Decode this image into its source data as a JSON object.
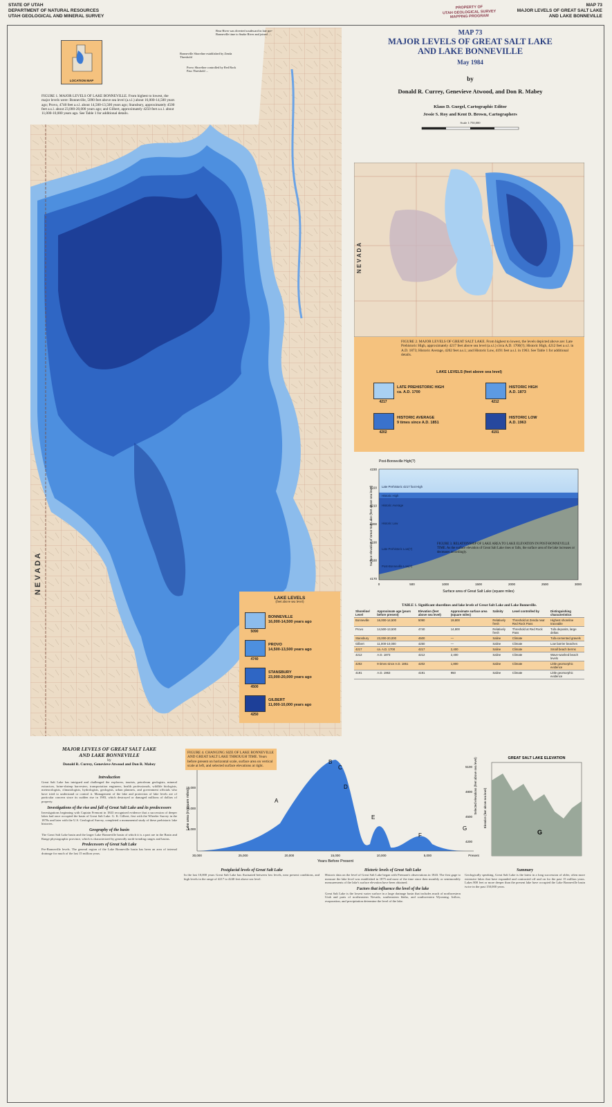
{
  "header": {
    "agency": [
      "STATE OF UTAH",
      "DEPARTMENT OF NATURAL RESOURCES",
      "UTAH GEOLOGICAL AND MINERAL SURVEY"
    ],
    "right": [
      "MAP 73",
      "MAJOR LEVELS OF GREAT SALT LAKE",
      "AND LAKE BONNEVILLE"
    ],
    "stamp": [
      "PROPERTY OF",
      "UTAH GEOLOGICAL SURVEY",
      "MAPPING PROGRAM"
    ]
  },
  "title_block": {
    "map_number": "MAP 73",
    "title": [
      "MAJOR LEVELS OF GREAT SALT LAKE",
      "AND LAKE BONNEVILLE"
    ],
    "date": "May 1984",
    "by": "by",
    "authors": "Donald R. Currey, Genevieve Atwood, and Don R. Mabey",
    "editor": "Klaus D. Gurgel, Cartographic Editor",
    "cartographers": "Jessie S. Roy and Kent D. Brown, Cartographers",
    "scale": "Scale 1:750,000"
  },
  "location_map": {
    "label": "LOCATION MAP"
  },
  "figure1": {
    "caption": "FIGURE 1. MAJOR LEVELS OF LAKE BONNEVILLE. From highest to lowest, the major levels were: Bonneville, 5090 feet above sea level (a.s.l.) about 16,000-14,500 years ago; Provo, 4740 feet a.s.l. about 14,500-13,500 years ago; Stansbury, approximately 4500 feet a.s.l. about 23,000-20,000 years ago; and Gilbert, approximately 4250 feet a.s.l. about 11,000-10,000 years ago. See Table 1 for additional details.",
    "notes": [
      "Bear River was diverted southward in late pre-Bonneville time to Snake River and joined ...",
      "Bonneville Shoreline established by Zenda Threshold",
      "Provo Shoreline controlled by Red Rock Pass Threshold ..."
    ],
    "state_label": "N E V A D A"
  },
  "legend1": {
    "title": "LAKE LEVELS",
    "subtitle": "(feet above sea level)",
    "items": [
      {
        "name": "BONNEVILLE",
        "age": "16,000-14,500 years ago",
        "elevation": "5090",
        "color": "#8cbcec"
      },
      {
        "name": "PROVO",
        "age": "14,500-13,500 years ago",
        "elevation": "4740",
        "color": "#4d8fdf"
      },
      {
        "name": "STANSBURY",
        "age": "23,000-20,000 years ago",
        "elevation": "4500",
        "color": "#2f66c4"
      },
      {
        "name": "GILBERT",
        "age": "11,000-10,000 years ago",
        "elevation": "4250",
        "color": "#1d3f98"
      }
    ]
  },
  "figure2": {
    "state_label": "N E V A D A",
    "caption": "FIGURE 2. MAJOR LEVELS OF GREAT SALT LAKE. From highest to lowest, the levels depicted above are: Late Prehistoric High, approximately 4217 feet above sea level (a.s.l.) circa A.D. 1700(?); Historic High, 4212 feet a.s.l. in A.D. 1873; Historic Average, 4202 feet a.s.l.; and Historic Low, 4191 feet a.s.l. in 1963. See Table 1 for additional details.",
    "legend_title": "LAKE LEVELS (feet above sea level)",
    "items": [
      {
        "name": "LATE PREHISTORIC HIGH",
        "date": "ca. A.D. 1700",
        "elevation": "4217",
        "color": "#a9d0f2"
      },
      {
        "name": "HISTORIC HIGH",
        "date": "A.D. 1873",
        "elevation": "4212",
        "color": "#5d9ae3"
      },
      {
        "name": "HISTORIC AVERAGE",
        "date": "9 times since A.D. 1851",
        "elevation": "4202",
        "color": "#3a72cc"
      },
      {
        "name": "HISTORIC LOW",
        "date": "A.D. 1963",
        "elevation": "4191",
        "color": "#26489e"
      }
    ]
  },
  "figure3": {
    "top_label": "Post-Bonneville High(?)",
    "levels": [
      "Late Prehistoric 4217 foot High",
      "Historic High",
      "Historic Average",
      "Historic Low",
      "Late Prehistoric Low(?)",
      "Post-Bonneville Low(?)"
    ],
    "y_title": "Surface elevation of Great Salt Lake (feet above sea level)",
    "x_title": "Surface area of Great Salt Lake (square miles)",
    "yticks": [
      "4230",
      "4220",
      "4210",
      "4200",
      "4190",
      "4180",
      "4170"
    ],
    "xticks": [
      "0",
      "500",
      "1000",
      "1500",
      "2000",
      "2500",
      "3000"
    ],
    "caption": "FIGURE 3. RELATIONSHIP OF LAKE AREA TO LAKE ELEVATION IN POST-BONNEVILLE TIME. As the surface elevation of Great Salt Lake rises or falls, the surface area of the lake increases or decreases accordingly."
  },
  "table1": {
    "title": "TABLE 1. Significant shorelines and lake levels of Great Salt Lake and Lake Bonneville.",
    "headers": [
      "Shoreline/ Level",
      "Approximate age (years before present)",
      "Elevation (feet above sea level)",
      "Approximate surface area (square miles)",
      "Salinity",
      "Level controlled by",
      "Distinguishing characteristics"
    ],
    "rows": [
      [
        "Bonneville",
        "16,000-14,500",
        "5090",
        "19,800",
        "Relatively fresh",
        "Threshold at Zenda near Red Rock Pass",
        "Highest shoreline traceable"
      ],
      [
        "Provo",
        "14,500-13,500",
        "4740",
        "14,800",
        "Relatively fresh",
        "Threshold at Red Rock Pass",
        "Tufa deposits, large deltas"
      ],
      [
        "Stansbury",
        "23,000-20,000",
        "4500",
        "—",
        "Saline",
        "Climate",
        "Tufa-cemented gravels"
      ],
      [
        "Gilbert",
        "11,000-10,000",
        "4250",
        "—",
        "Saline",
        "Climate",
        "Low barrier beaches"
      ],
      [
        "4217",
        "ca. A.D. 1700",
        "4217",
        "2,400",
        "Saline",
        "Climate",
        "Small beach berms"
      ],
      [
        "4212",
        "A.D. 1873",
        "4212",
        "2,400",
        "Saline",
        "Climate",
        "Wave-washed beach levels"
      ],
      [
        "4202",
        "9 times since A.D. 1851",
        "4202",
        "1,800",
        "Saline",
        "Climate",
        "Little geomorphic evidence"
      ],
      [
        "4191",
        "A.D. 1963",
        "4191",
        "950",
        "Saline",
        "Climate",
        "Little geomorphic evidence"
      ]
    ]
  },
  "figure4": {
    "caption": "FIGURE 4. CHANGING SIZE OF LAKE BONNEVILLE AND GREAT SALT LAKE THROUGH TIME. Years before present on horizontal scale, surface area on vertical scale at left, and selected surface elevations at right.",
    "y_title": "Lake area (in square miles)",
    "x_title": "Years Before Present",
    "yticks": [
      "20,000",
      "15,000",
      "10,000",
      "5,000"
    ],
    "xticks": [
      "30,000",
      "25,000",
      "20,000",
      "15,000",
      "10,000",
      "5,000",
      "Present"
    ],
    "letters": [
      "A",
      "B",
      "C",
      "D",
      "E",
      "F",
      "G"
    ],
    "y2_title": "Selected elevations (feet above sea level)",
    "y2ticks": [
      "5100",
      "4800",
      "4500",
      "4200"
    ]
  },
  "figure5": {
    "title": "GREAT SALT LAKE ELEVATION",
    "letter": "G",
    "y_title": "Elevation (feet above sea level)"
  },
  "article": {
    "title": [
      "MAJOR LEVELS OF GREAT SALT LAKE",
      "AND LAKE BONNEVILLE"
    ],
    "by": "by",
    "authors": "Donald R. Currey, Genevieve Atwood and Don R. Mabey",
    "sections": [
      {
        "heading": "Introduction",
        "text": "Great Salt Lake has intrigued and challenged the explorers, tourists, petroleum geologists, mineral extractors, brine-shrimp harvesters, transportation engineers, health professionals, wildlife biologists, meteorologists, climatologists, hydrologists, geologists, urban planners, and government officials who have tried to understand or control it. Management of the lake and protection of lake levels are of particular concern since its sudden rise in 1983, which destroyed or damaged millions of dollars of property."
      },
      {
        "heading": "Investigations of the rise and fall of Great Salt Lake and its predecessors",
        "text": "Investigations beginning with Captain Fremont in 1843 recognized evidence that a succession of deeper lakes had once occupied the basin of Great Salt Lake. G. K. Gilbert, first with the Wheeler Survey in the 1870s and later with the U.S. Geological Survey, completed a monumental study of these prehistoric lake histories."
      },
      {
        "heading": "Geography of the basin",
        "text": "The Great Salt Lake basin and the larger Lake Bonneville basin of which it is a part are in the Basin and Range physiographic province, which is characterized by generally north-trending ranges and basins."
      },
      {
        "heading": "Predecessors of Great Salt Lake",
        "text": "Pre-Bonneville levels. The general region of the Lake Bonneville basin has been an area of internal drainage for much of the last 15 million years."
      },
      {
        "heading": "Postglacial levels of Great Salt Lake",
        "text": "In the last 10,000 years Great Salt Lake has fluctuated between low levels, near present conditions, and high levels in the range of 4217 to 4240 feet above sea level."
      },
      {
        "heading": "Historic levels of Great Salt Lake",
        "text": "Historic data on the level of Great Salt Lake began with Fremont's observations in 1843. The first gage to measure the lake level was established in 1875 and most of the time since then monthly or semimonthly measurements of the lake's surface elevation have been obtained."
      },
      {
        "heading": "Factors that influence the level of the lake",
        "text": "Great Salt Lake is the lowest water surface in a large drainage basin that includes much of northwestern Utah and parts of northeastern Nevada, southeastern Idaho, and southwestern Wyoming. Inflow, evaporation, and precipitation determine the level of the lake."
      },
      {
        "heading": "Summary",
        "text": "Geologically speaking, Great Salt Lake is the latest in a long succession of older, often more extensive lakes that have expanded and contracted off and on for the past 15 million years. Lakes 800 feet or more deeper than the present lake have occupied the Lake Bonneville basin twice in the past 150,000 years."
      }
    ]
  }
}
